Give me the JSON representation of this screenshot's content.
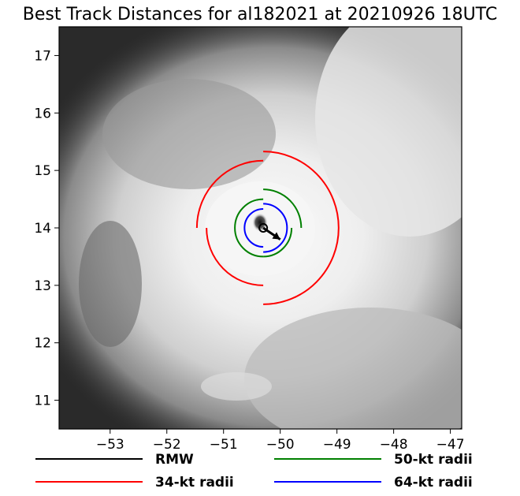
{
  "chart_data": {
    "type": "scatter",
    "title": "Best Track Distances for al182021 at 20210926 18UTC",
    "xlabel": "",
    "ylabel": "",
    "xlim": [
      -53.9,
      -46.8
    ],
    "ylim": [
      10.5,
      17.5
    ],
    "xticks": [
      -53,
      -52,
      -51,
      -50,
      -49,
      -48,
      -47
    ],
    "xtick_labels": [
      "−53",
      "−52",
      "−51",
      "−50",
      "−49",
      "−48",
      "−47"
    ],
    "yticks": [
      11,
      12,
      13,
      14,
      15,
      16,
      17
    ],
    "ytick_labels": [
      "11",
      "12",
      "13",
      "14",
      "15",
      "16",
      "17"
    ],
    "background": "satellite IR grayscale imagery",
    "center": {
      "lon": -50.3,
      "lat": 14.0
    },
    "motion_arrow": {
      "from": [
        -50.3,
        14.0
      ],
      "to": [
        -50.0,
        13.8
      ]
    },
    "rmw_deg": 0.07,
    "quadrant_radii_deg": {
      "34kt": {
        "NE": 1.33,
        "SE": 1.33,
        "SW": 1.0,
        "NW": 1.17
      },
      "50kt": {
        "NE": 0.67,
        "SE": 0.5,
        "SW": 0.5,
        "NW": 0.5
      },
      "64kt": {
        "NE": 0.42,
        "SE": 0.42,
        "SW": 0.33,
        "NW": 0.33
      }
    },
    "series": [
      {
        "name": "RMW",
        "color": "#000000"
      },
      {
        "name": "34-kt radii",
        "color": "#ff0000"
      },
      {
        "name": "50-kt radii",
        "color": "#008000"
      },
      {
        "name": "64-kt radii",
        "color": "#0000ff"
      }
    ],
    "legend_position": "bottom"
  }
}
